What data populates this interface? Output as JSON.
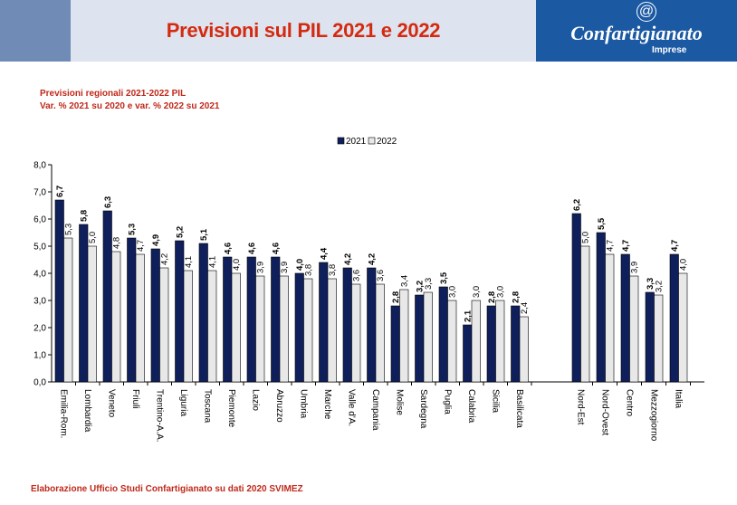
{
  "header": {
    "title": "Previsioni sul PIL 2021 e 2022",
    "logo_symbol": "@",
    "logo_name": "Confartigianato",
    "logo_sub": "Imprese"
  },
  "subtitle": {
    "line1": "Previsioni regionali 2021-2022 PIL",
    "line2": "Var. %  2021 su 2020 e var. % 2022 su 2021"
  },
  "footer": {
    "source": "Elaborazione Ufficio Studi Confartigianato su dati  2020 SVIMEZ"
  },
  "colors": {
    "series_2021": "#0f1f5c",
    "series_2022": "#e8e8e8",
    "title_red": "#d42a10",
    "header_band": "#dde4ef",
    "logo_blue": "#1b59a3"
  },
  "chart_data": {
    "type": "bar",
    "legend_position": "top-center",
    "grid": false,
    "ylim": [
      0,
      8
    ],
    "yticks": [
      "0,0",
      "1,0",
      "2,0",
      "3,0",
      "4,0",
      "5,0",
      "6,0",
      "7,0",
      "8,0"
    ],
    "categories": [
      "Emilia-Rom.",
      "Lombardia",
      "Veneto",
      "Friuli",
      "Trentino-A.A.",
      "Liguria",
      "Toscana",
      "Piemonte",
      "Lazio",
      "Abruzzo",
      "Umbria",
      "Marche",
      "Valle d'A.",
      "Campania",
      "Molise",
      "Sardegna",
      "Puglia",
      "Calabria",
      "Sicilia",
      "Basilicata",
      "Nord-Est",
      "Nord-Ovest",
      "Centro",
      "Mezzogiorno",
      "Italia"
    ],
    "series": [
      {
        "name": "2021",
        "values": [
          6.7,
          5.8,
          6.3,
          5.3,
          4.9,
          5.2,
          5.1,
          4.6,
          4.6,
          4.6,
          4.0,
          4.4,
          4.2,
          4.2,
          2.8,
          3.2,
          3.5,
          2.1,
          2.8,
          2.8,
          6.2,
          5.5,
          4.7,
          3.3,
          4.7
        ],
        "labels": [
          "6,7",
          "5,8",
          "6,3",
          "5,3",
          "4,9",
          "5,2",
          "5,1",
          "4,6",
          "4,6",
          "4,6",
          "4,0",
          "4,4",
          "4,2",
          "4,2",
          "2,8",
          "3,2",
          "3,5",
          "2,1",
          "2,8",
          "2,8",
          "6,2",
          "5,5",
          "4,7",
          "3,3",
          "4,7"
        ]
      },
      {
        "name": "2022",
        "values": [
          5.3,
          5.0,
          4.8,
          4.7,
          4.2,
          4.1,
          4.1,
          4.0,
          3.9,
          3.9,
          3.8,
          3.8,
          3.6,
          3.6,
          3.4,
          3.3,
          3.0,
          3.0,
          3.0,
          2.4,
          5.0,
          4.7,
          3.9,
          3.2,
          4.0
        ],
        "labels": [
          "5,3",
          "5,0",
          "4,8",
          "4,7",
          "4,2",
          "4,1",
          "4,1",
          "4,0",
          "3,9",
          "3,9",
          "3,8",
          "3,8",
          "3,6",
          "3,6",
          "3,4",
          "3,3",
          "3,0",
          "3,0",
          "3,0",
          "2,4",
          "5,0",
          "4,7",
          "3,9",
          "3,2",
          "4,0"
        ]
      }
    ]
  }
}
